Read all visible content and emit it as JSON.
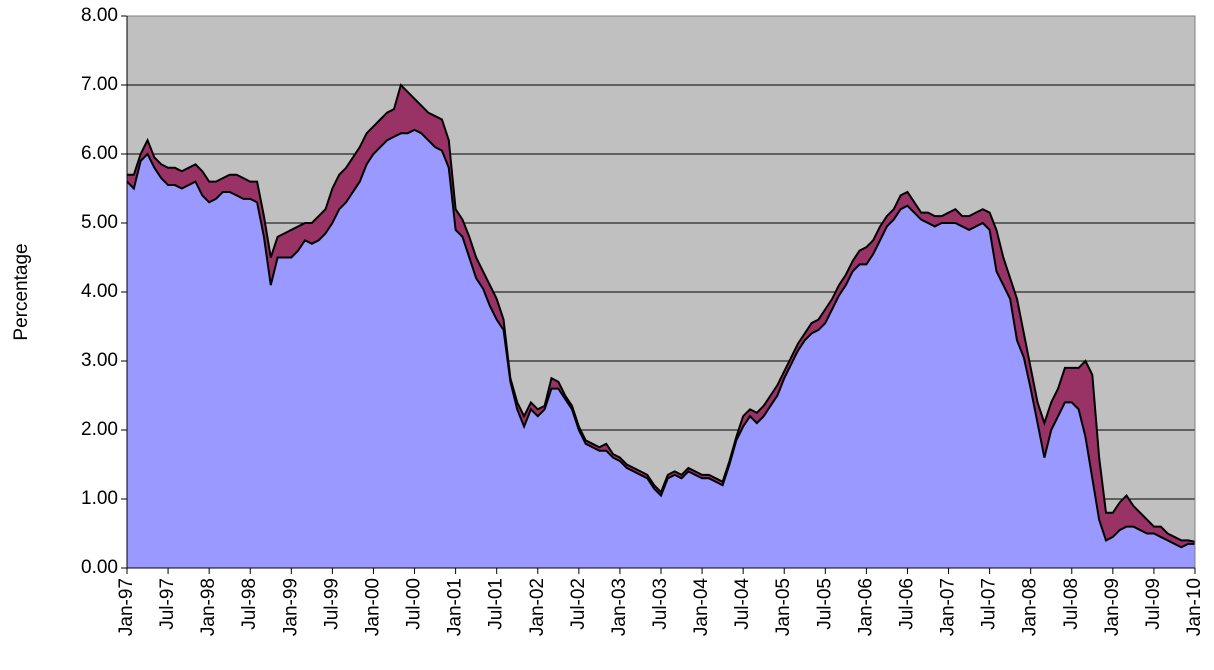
{
  "chart_data": {
    "type": "area",
    "y_label": "Percentage",
    "categories": [
      "Jan-97",
      null,
      null,
      null,
      null,
      null,
      "Jul-97",
      null,
      null,
      null,
      null,
      null,
      "Jan-98",
      null,
      null,
      null,
      null,
      null,
      "Jul-98",
      null,
      null,
      null,
      null,
      null,
      "Jan-99",
      null,
      null,
      null,
      null,
      null,
      "Jul-99",
      null,
      null,
      null,
      null,
      null,
      "Jan-00",
      null,
      null,
      null,
      null,
      null,
      "Jul-00",
      null,
      null,
      null,
      null,
      null,
      "Jan-01",
      null,
      null,
      null,
      null,
      null,
      "Jul-01",
      null,
      null,
      null,
      null,
      null,
      "Jan-02",
      null,
      null,
      null,
      null,
      null,
      "Jul-02",
      null,
      null,
      null,
      null,
      null,
      "Jan-03",
      null,
      null,
      null,
      null,
      null,
      "Jul-03",
      null,
      null,
      null,
      null,
      null,
      "Jan-04",
      null,
      null,
      null,
      null,
      null,
      "Jul-04",
      null,
      null,
      null,
      null,
      null,
      "Jan-05",
      null,
      null,
      null,
      null,
      null,
      "Jul-05",
      null,
      null,
      null,
      null,
      null,
      "Jan-06",
      null,
      null,
      null,
      null,
      null,
      "Jul-06",
      null,
      null,
      null,
      null,
      null,
      "Jan-07",
      null,
      null,
      null,
      null,
      null,
      "Jul-07",
      null,
      null,
      null,
      null,
      null,
      "Jan-08",
      null,
      null,
      null,
      null,
      null,
      "Jul-08",
      null,
      null,
      null,
      null,
      null,
      "Jan-09",
      null,
      null,
      null,
      null,
      null,
      "Jul-09",
      null,
      null,
      null,
      null,
      null,
      "Jan-10"
    ],
    "series": [
      {
        "color": "#993366",
        "values": [
          5.7,
          5.7,
          6.0,
          6.2,
          5.95,
          5.85,
          5.8,
          5.8,
          5.75,
          5.8,
          5.85,
          5.75,
          5.6,
          5.6,
          5.65,
          5.7,
          5.7,
          5.65,
          5.6,
          5.6,
          5.1,
          4.5,
          4.8,
          4.85,
          4.9,
          4.95,
          5.0,
          5.0,
          5.1,
          5.2,
          5.5,
          5.7,
          5.8,
          5.95,
          6.1,
          6.3,
          6.4,
          6.5,
          6.6,
          6.65,
          7.0,
          6.9,
          6.8,
          6.7,
          6.6,
          6.55,
          6.5,
          6.2,
          5.2,
          5.05,
          4.8,
          4.5,
          4.3,
          4.1,
          3.9,
          3.6,
          2.75,
          2.4,
          2.2,
          2.4,
          2.3,
          2.35,
          2.75,
          2.7,
          2.5,
          2.35,
          2.05,
          1.85,
          1.8,
          1.75,
          1.8,
          1.65,
          1.6,
          1.5,
          1.45,
          1.4,
          1.35,
          1.2,
          1.1,
          1.35,
          1.4,
          1.35,
          1.45,
          1.4,
          1.35,
          1.35,
          1.3,
          1.25,
          1.55,
          1.9,
          2.2,
          2.3,
          2.25,
          2.35,
          2.5,
          2.65,
          2.85,
          3.05,
          3.25,
          3.4,
          3.55,
          3.6,
          3.75,
          3.9,
          4.1,
          4.25,
          4.45,
          4.6,
          4.65,
          4.75,
          4.95,
          5.1,
          5.2,
          5.4,
          5.45,
          5.3,
          5.15,
          5.15,
          5.1,
          5.1,
          5.15,
          5.2,
          5.1,
          5.1,
          5.15,
          5.2,
          5.15,
          4.9,
          4.5,
          4.2,
          3.9,
          3.4,
          2.9,
          2.4,
          2.1,
          2.4,
          2.6,
          2.9,
          2.9,
          2.9,
          3.0,
          2.8,
          1.6,
          0.8,
          0.8,
          0.95,
          1.05,
          0.9,
          0.8,
          0.7,
          0.6,
          0.6,
          0.5,
          0.45,
          0.4,
          0.4,
          0.38
        ]
      },
      {
        "color": "#9999ff",
        "values": [
          5.6,
          5.5,
          5.9,
          6.0,
          5.8,
          5.65,
          5.55,
          5.55,
          5.5,
          5.55,
          5.6,
          5.4,
          5.3,
          5.35,
          5.45,
          5.45,
          5.4,
          5.35,
          5.35,
          5.3,
          4.8,
          4.1,
          4.5,
          4.5,
          4.5,
          4.6,
          4.75,
          4.7,
          4.75,
          4.85,
          5.0,
          5.2,
          5.3,
          5.45,
          5.6,
          5.85,
          6.0,
          6.1,
          6.2,
          6.25,
          6.3,
          6.3,
          6.35,
          6.3,
          6.2,
          6.1,
          6.05,
          5.8,
          4.9,
          4.8,
          4.5,
          4.2,
          4.05,
          3.8,
          3.6,
          3.45,
          2.7,
          2.3,
          2.05,
          2.3,
          2.2,
          2.3,
          2.6,
          2.6,
          2.45,
          2.3,
          2.0,
          1.8,
          1.75,
          1.7,
          1.7,
          1.6,
          1.55,
          1.45,
          1.4,
          1.35,
          1.3,
          1.15,
          1.05,
          1.3,
          1.35,
          1.3,
          1.4,
          1.35,
          1.3,
          1.3,
          1.25,
          1.2,
          1.5,
          1.85,
          2.05,
          2.2,
          2.1,
          2.2,
          2.35,
          2.5,
          2.75,
          2.95,
          3.15,
          3.3,
          3.4,
          3.45,
          3.55,
          3.75,
          3.95,
          4.1,
          4.3,
          4.4,
          4.4,
          4.55,
          4.75,
          4.95,
          5.05,
          5.2,
          5.25,
          5.15,
          5.05,
          5.0,
          4.95,
          5.0,
          5.0,
          5.0,
          4.95,
          4.9,
          4.95,
          5.0,
          4.9,
          4.3,
          4.1,
          3.9,
          3.3,
          3.05,
          2.6,
          2.1,
          1.6,
          2.0,
          2.2,
          2.4,
          2.4,
          2.3,
          1.9,
          1.3,
          0.7,
          0.4,
          0.45,
          0.55,
          0.6,
          0.6,
          0.55,
          0.5,
          0.5,
          0.45,
          0.4,
          0.35,
          0.3,
          0.35,
          0.35
        ]
      }
    ],
    "ylim": [
      0,
      8
    ],
    "yticks": [
      {
        "value": 0,
        "label": "0.00"
      },
      {
        "value": 1,
        "label": "1.00"
      },
      {
        "value": 2,
        "label": "2.00"
      },
      {
        "value": 3,
        "label": "3.00"
      },
      {
        "value": 4,
        "label": "4.00"
      },
      {
        "value": 5,
        "label": "5.00"
      },
      {
        "value": 6,
        "label": "6.00"
      },
      {
        "value": 7,
        "label": "7.00"
      },
      {
        "value": 8,
        "label": "8.00"
      }
    ],
    "grid": true,
    "plot_background": "#c0c0c0"
  }
}
